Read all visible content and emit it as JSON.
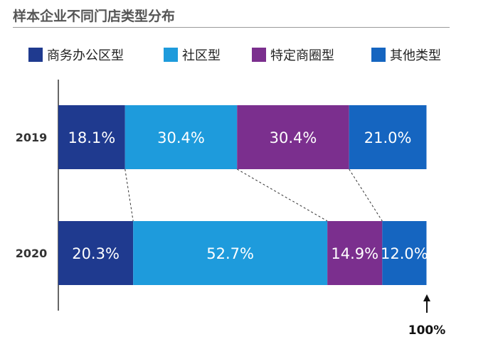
{
  "chart_data": {
    "type": "bar",
    "orientation": "horizontal",
    "stacked": true,
    "normalized": true,
    "title": "样本企业不同门店类型分布",
    "categories": [
      "2019",
      "2020"
    ],
    "series": [
      {
        "name": "商务办公区型",
        "color": "#1f3a8f",
        "values": [
          18.1,
          20.3
        ],
        "labels": [
          "18.1%",
          "20.3%"
        ]
      },
      {
        "name": "社区型",
        "color": "#1e9bdc",
        "values": [
          30.4,
          52.7
        ],
        "labels": [
          "30.4%",
          "52.7%"
        ]
      },
      {
        "name": "特定商圈型",
        "color": "#7b2f8e",
        "values": [
          30.4,
          14.9
        ],
        "labels": [
          "30.4%",
          "14.9%"
        ]
      },
      {
        "name": "其他类型",
        "color": "#1565c0",
        "values": [
          21.0,
          12.0
        ],
        "labels": [
          "21.0%",
          "12.0%"
        ]
      }
    ],
    "xlim": [
      0,
      100
    ],
    "end_marker_label": "100%",
    "connector_lines": "dashed",
    "grid": false
  }
}
